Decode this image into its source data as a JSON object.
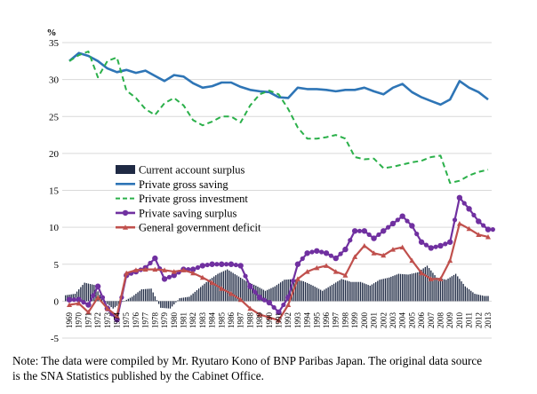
{
  "chart_data": {
    "type": "line",
    "ylabel": "%",
    "ylim": [
      -5,
      35
    ],
    "yticks": [
      -5,
      0,
      5,
      10,
      15,
      20,
      25,
      30,
      35
    ],
    "grid": true,
    "legend_position": "center-left",
    "x": [
      1969,
      1970,
      1971,
      1972,
      1973,
      1974,
      1975,
      1976,
      1977,
      1978,
      1979,
      1980,
      1981,
      1982,
      1983,
      1984,
      1985,
      1986,
      1987,
      1988,
      1989,
      1990,
      1991,
      1992,
      1993,
      1994,
      1995,
      1996,
      1997,
      1998,
      1999,
      2000,
      2001,
      2002,
      2003,
      2004,
      2005,
      2006,
      2007,
      2008,
      2009,
      2010,
      2011,
      2012,
      2013
    ],
    "series": [
      {
        "name": "Current account surplus",
        "kind": "bar",
        "color": "#1f2a44",
        "values": [
          0.8,
          1.0,
          2.5,
          2.2,
          0.0,
          -1.0,
          -0.1,
          0.6,
          1.6,
          1.7,
          -0.9,
          -1.0,
          0.4,
          0.6,
          1.7,
          2.8,
          3.7,
          4.3,
          3.5,
          2.7,
          2.1,
          1.4,
          2.0,
          2.9,
          3.0,
          2.7,
          2.1,
          1.4,
          2.2,
          3.0,
          2.6,
          2.6,
          2.1,
          2.9,
          3.2,
          3.7,
          3.6,
          3.9,
          4.8,
          3.2,
          2.9,
          3.7,
          2.0,
          1.0,
          0.7
        ]
      },
      {
        "name": "Private gross saving",
        "kind": "line",
        "color": "#2e75b6",
        "marker": "none",
        "values": [
          32.5,
          33.6,
          33.2,
          32.5,
          31.5,
          31.0,
          31.3,
          30.9,
          31.2,
          30.5,
          29.8,
          30.6,
          30.4,
          29.5,
          28.9,
          29.1,
          29.6,
          29.6,
          29.0,
          28.6,
          28.4,
          28.3,
          27.6,
          27.5,
          28.9,
          28.7,
          28.7,
          28.6,
          28.4,
          28.6,
          28.6,
          28.9,
          28.4,
          28.0,
          28.9,
          29.4,
          28.3,
          27.6,
          27.1,
          26.6,
          27.3,
          29.8,
          28.9,
          28.3,
          27.3
        ]
      },
      {
        "name": "Private gross investment",
        "kind": "line",
        "color": "#2bb04a",
        "dash": true,
        "marker": "none",
        "values": [
          32.5,
          33.3,
          33.8,
          30.3,
          32.5,
          33.0,
          28.5,
          27.5,
          26.0,
          25.2,
          26.8,
          27.5,
          26.5,
          24.5,
          23.8,
          24.3,
          25.0,
          25.0,
          24.2,
          26.5,
          28.0,
          28.5,
          28.0,
          26.0,
          23.5,
          22.0,
          22.0,
          22.2,
          22.5,
          22.0,
          19.5,
          19.2,
          19.3,
          18.0,
          18.2,
          18.5,
          18.8,
          19.0,
          19.5,
          19.7,
          16.0,
          16.3,
          17.0,
          17.5,
          17.8
        ]
      },
      {
        "name": "Private saving surplus",
        "kind": "line",
        "color": "#7030a0",
        "marker": "circle",
        "values": [
          0.2,
          0.2,
          -0.5,
          2.0,
          -1.0,
          -2.5,
          3.5,
          4.0,
          4.5,
          5.8,
          3.0,
          3.5,
          4.3,
          4.3,
          4.8,
          5.0,
          5.0,
          5.0,
          4.8,
          2.0,
          0.5,
          -0.2,
          -1.5,
          0.5,
          5.0,
          6.5,
          6.8,
          6.5,
          5.8,
          7.0,
          9.5,
          9.5,
          8.5,
          9.5,
          10.5,
          11.5,
          10.2,
          8.0,
          7.2,
          7.5,
          8.0,
          14.0,
          12.5,
          10.8,
          9.7
        ]
      },
      {
        "name": "General government deficit",
        "kind": "line",
        "color": "#c0504d",
        "marker": "triangle",
        "values": [
          -0.5,
          -0.3,
          -1.5,
          0.5,
          -1.0,
          -2.0,
          3.8,
          4.2,
          4.3,
          4.3,
          4.2,
          4.0,
          4.2,
          3.8,
          3.2,
          2.5,
          1.7,
          1.0,
          0.2,
          -1.0,
          -1.8,
          -2.2,
          -2.6,
          -0.5,
          3.0,
          4.0,
          4.5,
          4.8,
          4.0,
          3.5,
          6.0,
          7.5,
          6.5,
          6.2,
          7.0,
          7.3,
          5.5,
          3.8,
          3.0,
          3.0,
          5.5,
          10.5,
          9.8,
          9.0,
          8.7
        ]
      }
    ]
  },
  "note": {
    "line1": "Note: The data were compiled by Mr. Ryutaro Kono of BNP Paribas Japan. The original data source",
    "line2": "is the SNA Statistics published by the Cabinet Office."
  }
}
